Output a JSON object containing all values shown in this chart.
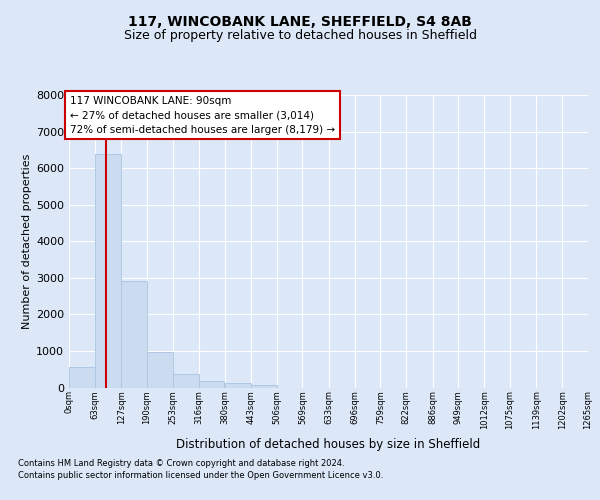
{
  "title1": "117, WINCOBANK LANE, SHEFFIELD, S4 8AB",
  "title2": "Size of property relative to detached houses in Sheffield",
  "xlabel": "Distribution of detached houses by size in Sheffield",
  "ylabel": "Number of detached properties",
  "bar_color": "#ccdcf0",
  "bar_edgecolor": "#aac4e0",
  "property_line_value": 90,
  "property_line_color": "#cc0000",
  "annotation_line1": "117 WINCOBANK LANE: 90sqm",
  "annotation_line2": "← 27% of detached houses are smaller (3,014)",
  "annotation_line3": "72% of semi-detached houses are larger (8,179) →",
  "annotation_box_facecolor": "#ffffff",
  "annotation_box_edgecolor": "#cc0000",
  "footnote1": "Contains HM Land Registry data © Crown copyright and database right 2024.",
  "footnote2": "Contains public sector information licensed under the Open Government Licence v3.0.",
  "bin_edges": [
    0,
    63,
    127,
    190,
    253,
    316,
    380,
    443,
    506,
    569,
    633,
    696,
    759,
    822,
    886,
    949,
    1012,
    1075,
    1139,
    1202,
    1265
  ],
  "bin_labels": [
    "0sqm",
    "63sqm",
    "127sqm",
    "190sqm",
    "253sqm",
    "316sqm",
    "380sqm",
    "443sqm",
    "506sqm",
    "569sqm",
    "633sqm",
    "696sqm",
    "759sqm",
    "822sqm",
    "886sqm",
    "949sqm",
    "1012sqm",
    "1075sqm",
    "1139sqm",
    "1202sqm",
    "1265sqm"
  ],
  "bar_heights": [
    560,
    6400,
    2920,
    980,
    380,
    170,
    110,
    60,
    0,
    0,
    0,
    0,
    0,
    0,
    0,
    0,
    0,
    0,
    0,
    0
  ],
  "ylim_max": 8000,
  "yticks": [
    0,
    1000,
    2000,
    3000,
    4000,
    5000,
    6000,
    7000,
    8000
  ],
  "fig_bg": "#dce8f8",
  "axes_bg": "#dce8f8",
  "grid_color": "#ffffff",
  "title1_fontsize": 10,
  "title2_fontsize": 9,
  "ylabel_fontsize": 8,
  "xlabel_fontsize": 8.5,
  "ytick_fontsize": 8,
  "xtick_fontsize": 6,
  "footnote_fontsize": 6,
  "annot_fontsize": 7.5
}
